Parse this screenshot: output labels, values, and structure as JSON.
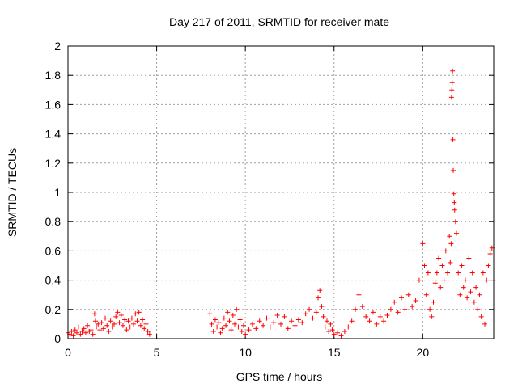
{
  "chart_data": {
    "type": "scatter",
    "title": "Day 217 of 2011, SRMTID for receiver mate",
    "xlabel": "GPS time / hours",
    "ylabel": "SRMTID / TECUs",
    "xlim": [
      0,
      24
    ],
    "ylim": [
      0,
      2
    ],
    "x_ticks": [
      0,
      5,
      10,
      15,
      20
    ],
    "y_ticks": [
      0,
      0.2,
      0.4,
      0.6,
      0.8,
      1,
      1.2,
      1.4,
      1.6,
      1.8,
      2
    ],
    "x_tick_labels": [
      "0",
      "5",
      "10",
      "15",
      "20"
    ],
    "y_tick_labels": [
      "0",
      "0.2",
      "0.4",
      "0.6",
      "0.8",
      "1",
      "1.2",
      "1.4",
      "1.6",
      "1.8",
      "2"
    ],
    "grid": true,
    "marker": "+",
    "series": [
      {
        "name": "SRMTID",
        "color": "#ff0000",
        "points": [
          [
            0.0,
            0.04
          ],
          [
            0.1,
            0.03
          ],
          [
            0.2,
            0.05
          ],
          [
            0.3,
            0.02
          ],
          [
            0.4,
            0.06
          ],
          [
            0.5,
            0.04
          ],
          [
            0.6,
            0.08
          ],
          [
            0.7,
            0.03
          ],
          [
            0.8,
            0.05
          ],
          [
            0.9,
            0.07
          ],
          [
            1.0,
            0.04
          ],
          [
            1.1,
            0.09
          ],
          [
            1.2,
            0.05
          ],
          [
            1.3,
            0.06
          ],
          [
            1.4,
            0.03
          ],
          [
            1.5,
            0.17
          ],
          [
            1.55,
            0.12
          ],
          [
            1.6,
            0.08
          ],
          [
            1.7,
            0.1
          ],
          [
            1.8,
            0.06
          ],
          [
            1.9,
            0.11
          ],
          [
            2.0,
            0.07
          ],
          [
            2.1,
            0.14
          ],
          [
            2.2,
            0.09
          ],
          [
            2.3,
            0.05
          ],
          [
            2.4,
            0.12
          ],
          [
            2.5,
            0.08
          ],
          [
            2.6,
            0.1
          ],
          [
            2.7,
            0.15
          ],
          [
            2.8,
            0.18
          ],
          [
            2.9,
            0.11
          ],
          [
            3.0,
            0.16
          ],
          [
            3.1,
            0.09
          ],
          [
            3.2,
            0.13
          ],
          [
            3.3,
            0.06
          ],
          [
            3.4,
            0.12
          ],
          [
            3.5,
            0.08
          ],
          [
            3.6,
            0.14
          ],
          [
            3.7,
            0.1
          ],
          [
            3.8,
            0.17
          ],
          [
            3.9,
            0.12
          ],
          [
            4.0,
            0.18
          ],
          [
            4.1,
            0.09
          ],
          [
            4.2,
            0.13
          ],
          [
            4.3,
            0.07
          ],
          [
            4.4,
            0.1
          ],
          [
            4.5,
            0.05
          ],
          [
            4.6,
            0.03
          ],
          [
            8.0,
            0.17
          ],
          [
            8.1,
            0.1
          ],
          [
            8.2,
            0.05
          ],
          [
            8.3,
            0.13
          ],
          [
            8.4,
            0.08
          ],
          [
            8.5,
            0.11
          ],
          [
            8.6,
            0.04
          ],
          [
            8.7,
            0.07
          ],
          [
            8.8,
            0.14
          ],
          [
            8.9,
            0.09
          ],
          [
            9.0,
            0.18
          ],
          [
            9.1,
            0.12
          ],
          [
            9.2,
            0.06
          ],
          [
            9.3,
            0.16
          ],
          [
            9.4,
            0.1
          ],
          [
            9.5,
            0.2
          ],
          [
            9.6,
            0.08
          ],
          [
            9.7,
            0.13
          ],
          [
            9.8,
            0.05
          ],
          [
            9.9,
            0.09
          ],
          [
            10.0,
            0.03
          ],
          [
            10.2,
            0.06
          ],
          [
            10.4,
            0.1
          ],
          [
            10.6,
            0.07
          ],
          [
            10.8,
            0.12
          ],
          [
            11.0,
            0.09
          ],
          [
            11.2,
            0.14
          ],
          [
            11.4,
            0.08
          ],
          [
            11.6,
            0.11
          ],
          [
            11.8,
            0.16
          ],
          [
            12.0,
            0.1
          ],
          [
            12.2,
            0.15
          ],
          [
            12.4,
            0.07
          ],
          [
            12.6,
            0.12
          ],
          [
            12.8,
            0.09
          ],
          [
            13.0,
            0.13
          ],
          [
            13.2,
            0.11
          ],
          [
            13.4,
            0.17
          ],
          [
            13.6,
            0.2
          ],
          [
            13.8,
            0.14
          ],
          [
            14.0,
            0.18
          ],
          [
            14.1,
            0.28
          ],
          [
            14.2,
            0.33
          ],
          [
            14.3,
            0.22
          ],
          [
            14.4,
            0.15
          ],
          [
            14.5,
            0.08
          ],
          [
            14.6,
            0.12
          ],
          [
            14.7,
            0.05
          ],
          [
            14.8,
            0.1
          ],
          [
            14.9,
            0.06
          ],
          [
            15.0,
            0.03
          ],
          [
            15.2,
            0.04
          ],
          [
            15.4,
            0.02
          ],
          [
            15.6,
            0.05
          ],
          [
            15.8,
            0.08
          ],
          [
            16.0,
            0.12
          ],
          [
            16.2,
            0.2
          ],
          [
            16.4,
            0.3
          ],
          [
            16.6,
            0.22
          ],
          [
            16.8,
            0.15
          ],
          [
            17.0,
            0.12
          ],
          [
            17.2,
            0.18
          ],
          [
            17.4,
            0.1
          ],
          [
            17.6,
            0.15
          ],
          [
            17.8,
            0.12
          ],
          [
            18.0,
            0.16
          ],
          [
            18.2,
            0.2
          ],
          [
            18.4,
            0.25
          ],
          [
            18.6,
            0.18
          ],
          [
            18.8,
            0.28
          ],
          [
            19.0,
            0.2
          ],
          [
            19.2,
            0.3
          ],
          [
            19.4,
            0.22
          ],
          [
            19.6,
            0.26
          ],
          [
            19.8,
            0.4
          ],
          [
            20.0,
            0.65
          ],
          [
            20.1,
            0.5
          ],
          [
            20.2,
            0.3
          ],
          [
            20.3,
            0.45
          ],
          [
            20.4,
            0.2
          ],
          [
            20.5,
            0.15
          ],
          [
            20.6,
            0.25
          ],
          [
            20.7,
            0.38
          ],
          [
            20.8,
            0.45
          ],
          [
            20.9,
            0.55
          ],
          [
            21.0,
            0.35
          ],
          [
            21.1,
            0.5
          ],
          [
            21.2,
            0.4
          ],
          [
            21.3,
            0.6
          ],
          [
            21.4,
            0.45
          ],
          [
            21.5,
            0.7
          ],
          [
            21.55,
            0.52
          ],
          [
            21.6,
            0.65
          ],
          [
            21.62,
            1.65
          ],
          [
            21.64,
            1.7
          ],
          [
            21.66,
            1.75
          ],
          [
            21.68,
            1.83
          ],
          [
            21.7,
            1.36
          ],
          [
            21.72,
            1.15
          ],
          [
            21.75,
            0.99
          ],
          [
            21.78,
            0.93
          ],
          [
            21.8,
            0.88
          ],
          [
            21.85,
            0.8
          ],
          [
            21.9,
            0.72
          ],
          [
            22.0,
            0.45
          ],
          [
            22.1,
            0.3
          ],
          [
            22.2,
            0.5
          ],
          [
            22.3,
            0.35
          ],
          [
            22.4,
            0.4
          ],
          [
            22.5,
            0.28
          ],
          [
            22.6,
            0.55
          ],
          [
            22.7,
            0.32
          ],
          [
            22.8,
            0.45
          ],
          [
            22.9,
            0.25
          ],
          [
            23.0,
            0.35
          ],
          [
            23.1,
            0.2
          ],
          [
            23.2,
            0.3
          ],
          [
            23.3,
            0.15
          ],
          [
            23.4,
            0.45
          ],
          [
            23.5,
            0.1
          ],
          [
            23.6,
            0.4
          ],
          [
            23.7,
            0.5
          ],
          [
            23.8,
            0.58
          ],
          [
            23.9,
            0.62
          ],
          [
            24.0,
            0.4
          ]
        ]
      }
    ]
  }
}
